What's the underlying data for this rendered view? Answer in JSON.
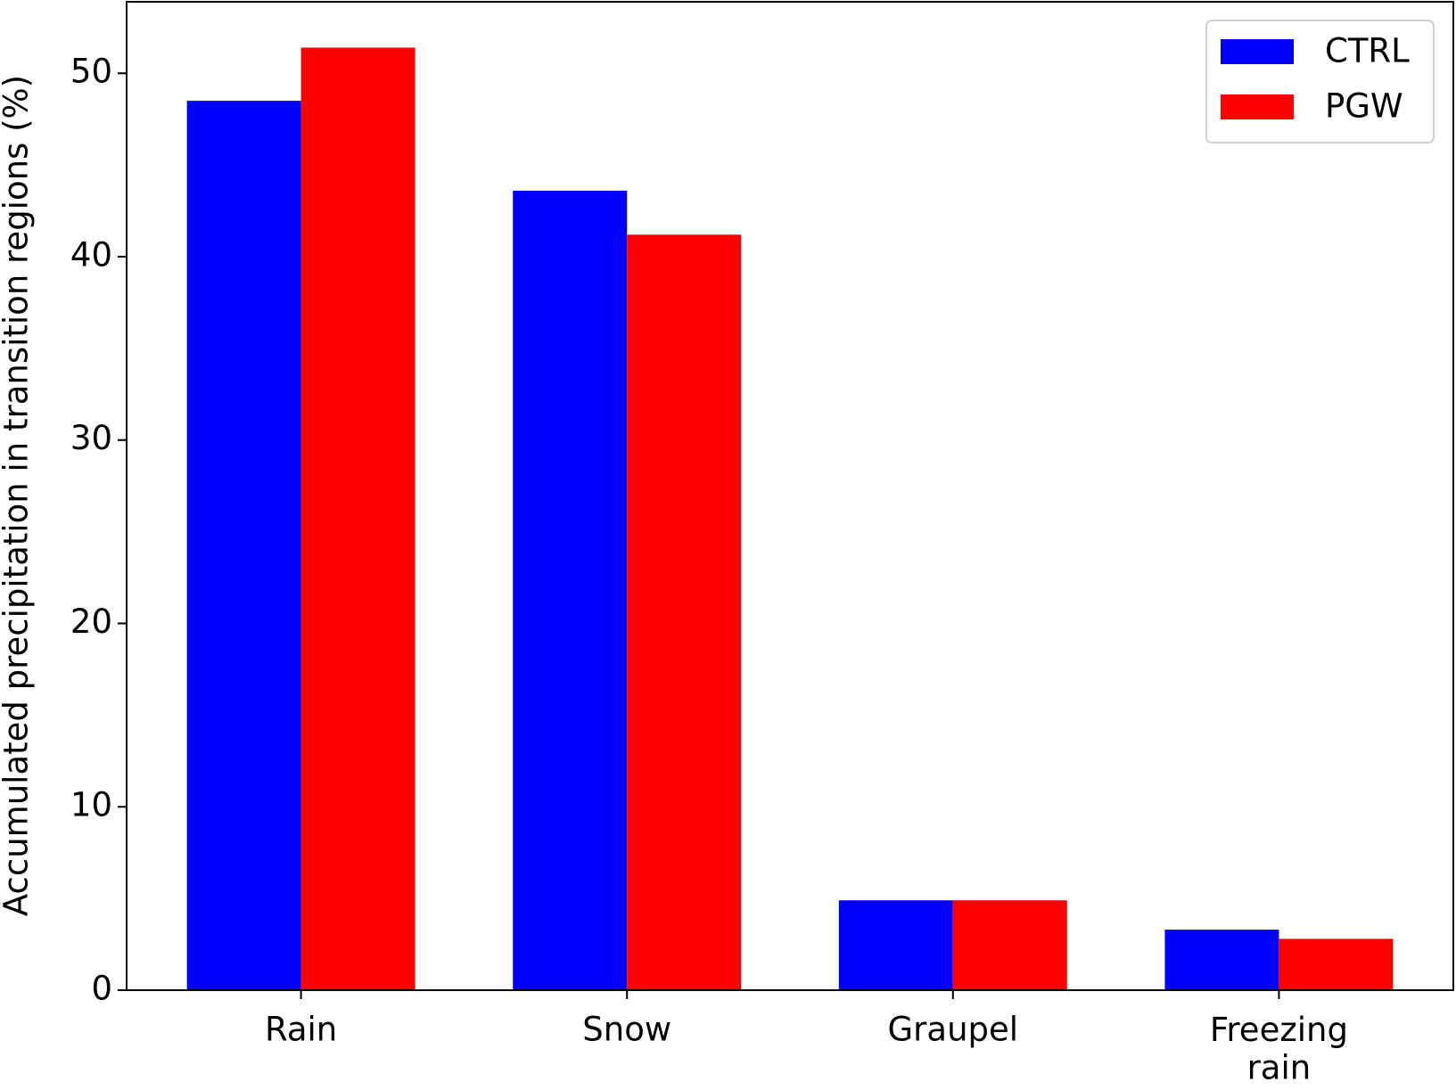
{
  "chart_data": {
    "type": "bar",
    "y_label": "Accumulated precipitation in transition regions (%)",
    "categories": [
      "Rain",
      "Snow",
      "Graupel",
      "Freezing\nrain"
    ],
    "series": [
      {
        "name": "CTRL",
        "color": "#0000ff",
        "values": [
          48.5,
          43.6,
          4.9,
          3.3
        ]
      },
      {
        "name": "PGW",
        "color": "#ff0000",
        "values": [
          51.4,
          41.2,
          4.9,
          2.8
        ]
      }
    ],
    "ylim": [
      0,
      53.9
    ],
    "yticks": [
      0,
      10,
      20,
      30,
      40,
      50
    ],
    "legend": "upper right"
  }
}
